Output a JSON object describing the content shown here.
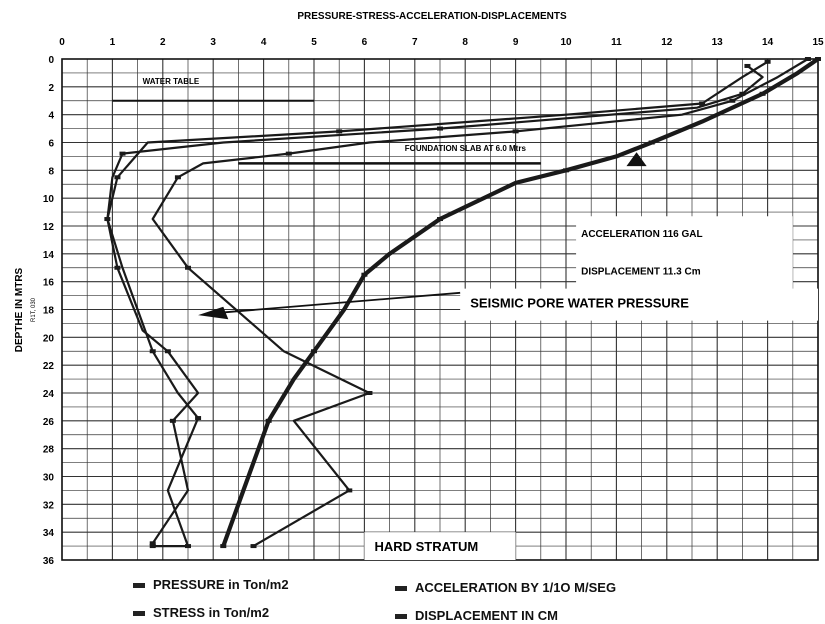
{
  "chart_data": {
    "type": "line",
    "title": "PRESSURE-STRESS-ACCELERATION-DISPLACEMENTS",
    "ylabel": "DEPTHE IN MTRS",
    "ylabel_sub": "R1T, 030",
    "xlim": [
      0,
      15
    ],
    "ylim": [
      0,
      36
    ],
    "y_inverted": true,
    "x_ticks": [
      "0",
      "1",
      "2",
      "3",
      "4",
      "5",
      "6",
      "7",
      "8",
      "9",
      "10",
      "11",
      "12",
      "13",
      "14",
      "15"
    ],
    "y_ticks": [
      "0",
      "2",
      "4",
      "6",
      "8",
      "10",
      "12",
      "14",
      "16",
      "18",
      "20",
      "22",
      "24",
      "26",
      "28",
      "30",
      "32",
      "34",
      "36"
    ],
    "grid": true,
    "series": [
      {
        "name": "PRESSURE in Ton/m2",
        "width": 2.2,
        "x": [
          13.6,
          13.9,
          13.5,
          12.6,
          7.5,
          3.2,
          1.2,
          1.0,
          0.9,
          1.2,
          1.8,
          2.3,
          2.7,
          2.1,
          2.5,
          1.8
        ],
        "y": [
          0.5,
          1.3,
          2.5,
          3.5,
          5.0,
          6.0,
          6.8,
          8.5,
          11.5,
          15.0,
          21.0,
          24.0,
          25.8,
          31.0,
          35.0,
          35.0
        ]
      },
      {
        "name": "STRESS in Ton/m2",
        "width": 2.2,
        "x": [
          14.0,
          13.5,
          12.7,
          10.0,
          5.5,
          1.7,
          1.1,
          0.9,
          1.1,
          1.6,
          2.1,
          2.7,
          2.2,
          2.5,
          1.8
        ],
        "y": [
          0.2,
          1.3,
          3.2,
          4.0,
          5.2,
          6.0,
          8.5,
          11.5,
          15.0,
          19.5,
          21.0,
          24.0,
          26.0,
          31.0,
          34.8
        ]
      },
      {
        "name": "ACCELERATION BY 1/1O M/SEG",
        "width": 2.2,
        "x": [
          14.8,
          14.2,
          13.3,
          12.3,
          9.0,
          6.1,
          4.5,
          2.8,
          2.3,
          1.8,
          2.5,
          4.4,
          6.1,
          4.6,
          5.7,
          3.8
        ],
        "y": [
          0.0,
          1.3,
          3.0,
          4.0,
          5.2,
          6.0,
          6.8,
          7.5,
          8.5,
          11.5,
          15.0,
          21.0,
          24.0,
          26.0,
          31.0,
          35.0
        ]
      },
      {
        "name": "DISPLACEMENT IN  CM",
        "width": 4.2,
        "x": [
          15.0,
          14.6,
          13.9,
          12.7,
          11.7,
          11.0,
          10.0,
          9.0,
          7.5,
          6.5,
          6.0,
          5.6,
          5.0,
          4.6,
          4.1,
          3.6,
          3.2
        ],
        "y": [
          0.0,
          1.0,
          2.5,
          4.5,
          6.0,
          7.0,
          8.0,
          8.9,
          11.5,
          14.0,
          15.5,
          18.0,
          21.0,
          23.0,
          26.0,
          31.0,
          35.0
        ]
      }
    ],
    "annotations": [
      {
        "text": "WATER TABLE",
        "x": 1.6,
        "y": 1.5
      },
      {
        "text": "FOUNDATION SLAB AT 6.0  Mtrs",
        "x": 6.8,
        "y": 6.4
      },
      {
        "text": "ACCELERATION  116  GAL",
        "x": 10.3,
        "y": 12.5
      },
      {
        "text": "DISPLACEMENT  11.3 Cm",
        "x": 10.3,
        "y": 15.2
      },
      {
        "text": "SEISMIC PORE WATER PRESSURE",
        "x": 8.1,
        "y": 17.5
      },
      {
        "text": "HARD STRATUM",
        "x": 6.2,
        "y": 35.0
      }
    ],
    "legend": [
      "PRESSURE in Ton/m2",
      "ACCELERATION BY 1/1O M/SEG",
      "STRESS in Ton/m2",
      "DISPLACEMENT IN  CM"
    ],
    "legend_position": "bottom"
  }
}
